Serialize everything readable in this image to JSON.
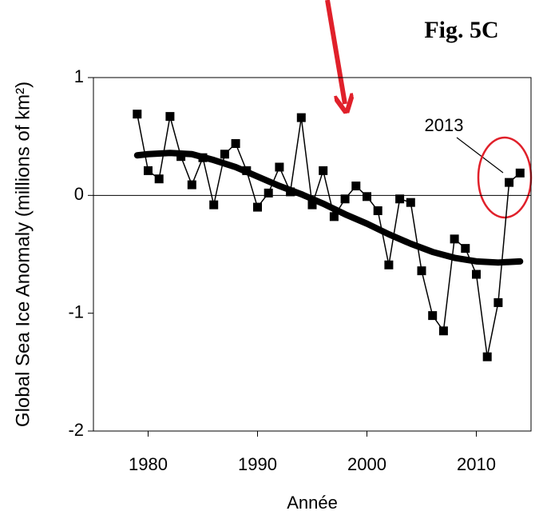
{
  "chart_data": {
    "type": "line",
    "title": "Fig. 5C",
    "x_label": "Année",
    "y_label": "Global Sea Ice Anomaly (millions of km²)",
    "annotation": "2013",
    "xlim": [
      1975,
      2015
    ],
    "xticks": [
      1980,
      1990,
      2000,
      2010
    ],
    "ylim": [
      -2,
      1
    ],
    "yticks": [
      -2,
      -1,
      0,
      1
    ],
    "series": [
      {
        "color": "#000000",
        "marker": "square",
        "x": [
          1979,
          1980,
          1981,
          1982,
          1983,
          1984,
          1985,
          1986,
          1987,
          1988,
          1989,
          1990,
          1991,
          1992,
          1993,
          1994,
          1995,
          1996,
          1997,
          1998,
          1999,
          2000,
          2001,
          2002,
          2003,
          2004,
          2005,
          2006,
          2007,
          2008,
          2009,
          2010,
          2011,
          2012,
          2013,
          2014
        ],
        "values": [
          0.69,
          0.21,
          0.14,
          0.67,
          0.33,
          0.09,
          0.32,
          -0.08,
          0.35,
          0.44,
          0.21,
          -0.1,
          0.02,
          0.24,
          0.03,
          0.66,
          -0.08,
          0.21,
          -0.18,
          -0.03,
          0.08,
          -0.01,
          -0.13,
          -0.59,
          -0.03,
          -0.06,
          -0.64,
          -1.02,
          -1.15,
          -0.37,
          -0.45,
          -0.67,
          -1.37,
          -0.91,
          0.11,
          0.19
        ]
      },
      {
        "color": "#000000",
        "marker": "none",
        "x": [
          1979,
          1980,
          1982,
          1984,
          1986,
          1988,
          1990,
          1992,
          1994,
          1996,
          1998,
          2000,
          2002,
          2004,
          2006,
          2008,
          2010,
          2012,
          2014
        ],
        "values": [
          0.34,
          0.35,
          0.36,
          0.35,
          0.3,
          0.24,
          0.16,
          0.08,
          0.01,
          -0.07,
          -0.16,
          -0.24,
          -0.33,
          -0.41,
          -0.48,
          -0.53,
          -0.56,
          -0.57,
          -0.56
        ]
      }
    ]
  }
}
